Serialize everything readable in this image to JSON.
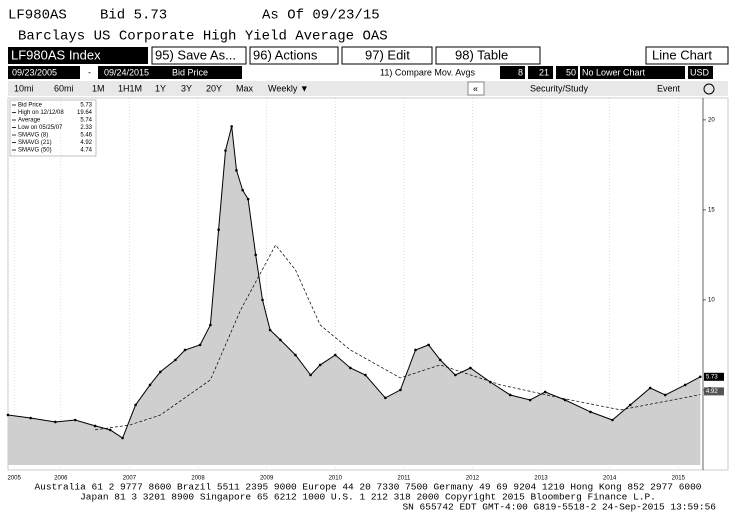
{
  "header": {
    "ticker": "LF980AS",
    "bid": "Bid 5.73",
    "as_of": "As Of 09/23/15",
    "name": "Barclays US Corporate High Yield Average OAS"
  },
  "toolbar": {
    "security": "LF980AS Index",
    "buttons": [
      "95) Save As...",
      "96) Actions",
      "97) Edit",
      "98) Table"
    ],
    "chart_type": "Line Chart"
  },
  "settings_bar": {
    "start": "09/23/2005",
    "dash": "-",
    "end": "09/24/2015",
    "field": "Bid Price",
    "compare": "11) Compare Mov. Avgs",
    "periods": [
      "8",
      "21",
      "50"
    ],
    "lower": "No Lower Chart",
    "currency": "USD"
  },
  "period_bar": {
    "periods": [
      "10mi",
      "60mi",
      "1M",
      "1H1M",
      "1Y",
      "3Y",
      "20Y",
      "Max"
    ],
    "frequency": "Weekly ▼",
    "collapse": "«",
    "study": "Security/Study",
    "event": "Event"
  },
  "chart_data": {
    "type": "line",
    "legend": [
      {
        "label": "Bid Price",
        "value": 5.73
      },
      {
        "label": "High on 12/12/08",
        "value": 19.64
      },
      {
        "label": "Average",
        "value": 5.74
      },
      {
        "label": "Low on 05/25/07",
        "value": 2.33
      },
      {
        "label": "SMAVG (8)",
        "value": 5.46
      },
      {
        "label": "SMAVG (21)",
        "value": 4.92
      },
      {
        "label": "SMAVG (50)",
        "value": 4.74
      }
    ],
    "series": [
      {
        "color": "#000000",
        "fill": "#cfcfcf",
        "x": [
          2005.73,
          2006.06,
          2006.42,
          2006.71,
          2007.0,
          2007.22,
          2007.4,
          2007.59,
          2007.8,
          2007.95,
          2008.17,
          2008.31,
          2008.53,
          2008.68,
          2008.8,
          2008.9,
          2008.99,
          2009.06,
          2009.15,
          2009.23,
          2009.34,
          2009.44,
          2009.55,
          2009.7,
          2009.92,
          2010.14,
          2010.28,
          2010.5,
          2010.72,
          2010.94,
          2011.23,
          2011.45,
          2011.67,
          2011.86,
          2012.03,
          2012.25,
          2012.47,
          2012.76,
          2013.05,
          2013.34,
          2013.56,
          2013.85,
          2014.22,
          2014.54,
          2014.8,
          2015.09,
          2015.31,
          2015.6,
          2015.82
        ],
        "values": [
          3.61,
          3.44,
          3.22,
          3.33,
          3.0,
          2.78,
          2.33,
          4.17,
          5.28,
          6.0,
          6.67,
          7.22,
          7.5,
          8.61,
          13.9,
          18.3,
          19.64,
          17.2,
          16.1,
          15.6,
          12.5,
          10.0,
          8.33,
          7.78,
          6.94,
          5.83,
          6.39,
          6.94,
          6.22,
          5.83,
          4.56,
          5.0,
          7.22,
          7.5,
          6.67,
          5.83,
          6.22,
          5.44,
          4.72,
          4.44,
          4.89,
          4.44,
          3.78,
          3.33,
          4.17,
          5.11,
          4.72,
          5.28,
          5.73
        ]
      },
      {
        "color": "#000000",
        "dash": true,
        "x": [
          2007.0,
          2007.51,
          2007.95,
          2008.68,
          2009.12,
          2009.63,
          2009.92,
          2010.28,
          2010.72,
          2011.45,
          2012.03,
          2012.91,
          2013.78,
          2014.66,
          2015.82
        ],
        "values": [
          2.78,
          3.06,
          3.6,
          5.56,
          9.44,
          13.05,
          11.67,
          8.61,
          7.22,
          5.67,
          6.39,
          5.28,
          4.56,
          3.89,
          4.74
        ]
      }
    ],
    "xlim": [
      2005.73,
      2015.86
    ],
    "xticks": [
      {
        "value": 2005.82,
        "label": "2005"
      },
      {
        "value": 2006.5,
        "label": "2006"
      },
      {
        "value": 2007.5,
        "label": "2007"
      },
      {
        "value": 2008.5,
        "label": "2008"
      },
      {
        "value": 2009.5,
        "label": "2009"
      },
      {
        "value": 2010.5,
        "label": "2010"
      },
      {
        "value": 2011.5,
        "label": "2011"
      },
      {
        "value": 2012.5,
        "label": "2012"
      },
      {
        "value": 2013.5,
        "label": "2013"
      },
      {
        "value": 2014.5,
        "label": "2014"
      },
      {
        "value": 2015.5,
        "label": "2015"
      }
    ],
    "ylim": [
      0.83,
      20.44
    ],
    "yticks": [
      5,
      10,
      15,
      20
    ],
    "grid": true
  },
  "footer": {
    "lines": [
      "Australia 61 2 9777 8600 Brazil 5511 2395 9000 Europe 44 20 7330 7500 Germany 49 69 9204 1210 Hong Kong 852 2977 6000",
      "Japan 81 3 3201 8900         Singapore 65 6212 1000          U.S. 1 212 318 2000          Copyright 2015 Bloomberg Finance L.P.",
      "SN 655742 EDT  GMT-4:00 G819-5518-2 24-Sep-2015 13:59:56"
    ]
  }
}
